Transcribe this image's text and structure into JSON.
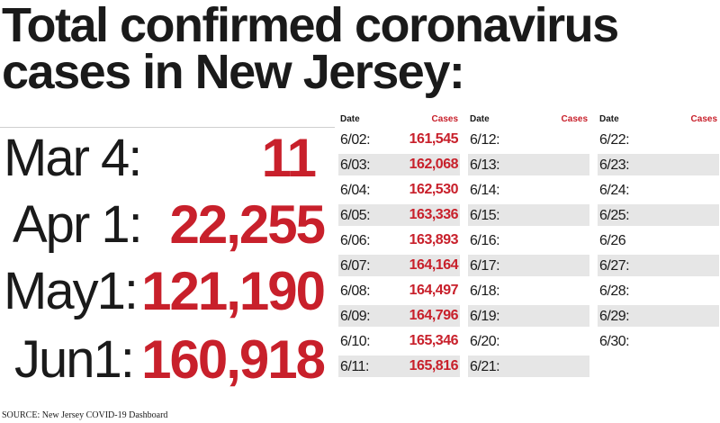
{
  "title_line1": "Total confirmed coronavirus",
  "title_line2": "cases in New Jersey:",
  "source": "SOURCE: New Jersey COVID-19 Dashboard",
  "colors": {
    "accent": "#c8202b",
    "text": "#1a1a1a",
    "shade": "#e6e6e6"
  },
  "milestones": [
    {
      "date": "Mar 4:",
      "value": "11"
    },
    {
      "date": "Apr 1:",
      "value": "22,255"
    },
    {
      "date": "May1:",
      "value": "121,190"
    },
    {
      "date": "Jun1:",
      "value": "160,918"
    }
  ],
  "chart_data": {
    "type": "table",
    "title": "Total confirmed coronavirus cases in New Jersey:",
    "column_headers": {
      "date": "Date",
      "cases": "Cases"
    },
    "columns": [
      [
        {
          "date": "6/02:",
          "cases": "161,545"
        },
        {
          "date": "6/03:",
          "cases": "162,068"
        },
        {
          "date": "6/04:",
          "cases": "162,530"
        },
        {
          "date": "6/05:",
          "cases": "163,336"
        },
        {
          "date": "6/06:",
          "cases": "163,893"
        },
        {
          "date": "6/07:",
          "cases": "164,164"
        },
        {
          "date": "6/08:",
          "cases": "164,497"
        },
        {
          "date": "6/09:",
          "cases": "164,796"
        },
        {
          "date": "6/10:",
          "cases": "165,346"
        },
        {
          "date": "6/11:",
          "cases": "165,816"
        }
      ],
      [
        {
          "date": "6/12:",
          "cases": ""
        },
        {
          "date": "6/13:",
          "cases": ""
        },
        {
          "date": "6/14:",
          "cases": ""
        },
        {
          "date": "6/15:",
          "cases": ""
        },
        {
          "date": "6/16:",
          "cases": ""
        },
        {
          "date": "6/17:",
          "cases": ""
        },
        {
          "date": "6/18:",
          "cases": ""
        },
        {
          "date": "6/19:",
          "cases": ""
        },
        {
          "date": "6/20:",
          "cases": ""
        },
        {
          "date": "6/21:",
          "cases": ""
        }
      ],
      [
        {
          "date": "6/22:",
          "cases": ""
        },
        {
          "date": "6/23:",
          "cases": ""
        },
        {
          "date": "6/24:",
          "cases": ""
        },
        {
          "date": "6/25:",
          "cases": ""
        },
        {
          "date": "6/26",
          "cases": ""
        },
        {
          "date": "6/27:",
          "cases": ""
        },
        {
          "date": "6/28:",
          "cases": ""
        },
        {
          "date": "6/29:",
          "cases": ""
        },
        {
          "date": "6/30:",
          "cases": ""
        }
      ]
    ]
  }
}
